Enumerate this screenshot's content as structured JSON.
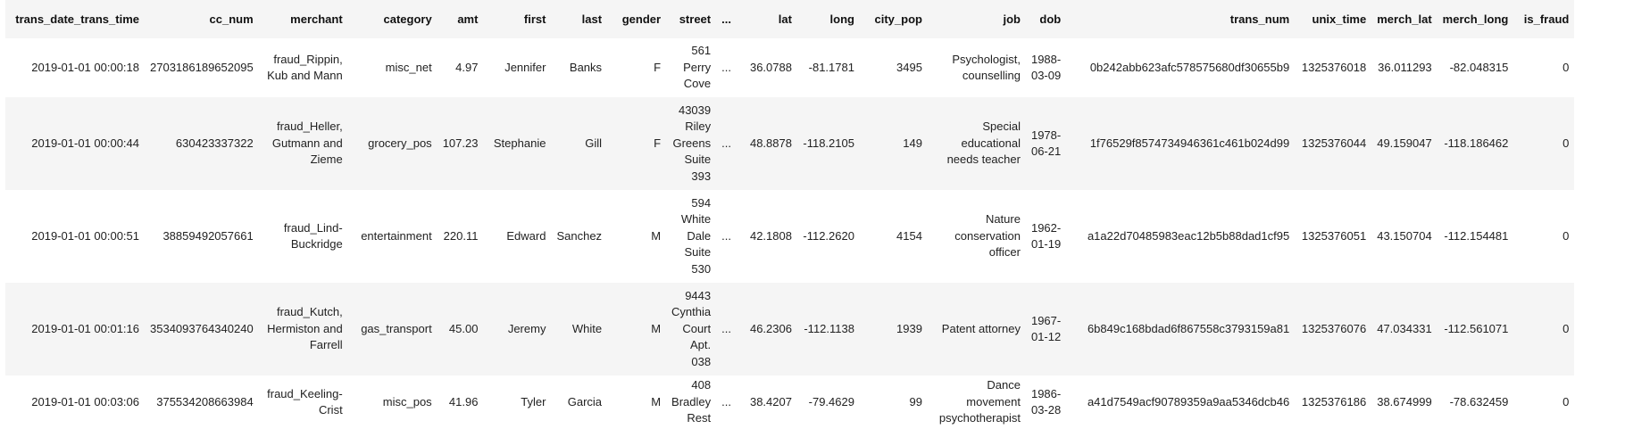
{
  "table": {
    "columns": [
      "trans_date_trans_time",
      "cc_num",
      "merchant",
      "category",
      "amt",
      "first",
      "last",
      "gender",
      "street",
      "...",
      "lat",
      "long",
      "city_pop",
      "job",
      "dob",
      "trans_num",
      "unix_time",
      "merch_lat",
      "merch_long",
      "is_fraud"
    ],
    "rows": [
      [
        "2019-01-01 00:00:18",
        "2703186189652095",
        "fraud_Rippin, Kub and Mann",
        "misc_net",
        "4.97",
        "Jennifer",
        "Banks",
        "F",
        "561 Perry Cove",
        "...",
        "36.0788",
        "-81.1781",
        "3495",
        "Psychologist, counselling",
        "1988-03-09",
        "0b242abb623afc578575680df30655b9",
        "1325376018",
        "36.011293",
        "-82.048315",
        "0"
      ],
      [
        "2019-01-01 00:00:44",
        "630423337322",
        "fraud_Heller, Gutmann and Zieme",
        "grocery_pos",
        "107.23",
        "Stephanie",
        "Gill",
        "F",
        "43039 Riley Greens Suite 393",
        "...",
        "48.8878",
        "-118.2105",
        "149",
        "Special educational needs teacher",
        "1978-06-21",
        "1f76529f8574734946361c461b024d99",
        "1325376044",
        "49.159047",
        "-118.186462",
        "0"
      ],
      [
        "2019-01-01 00:00:51",
        "38859492057661",
        "fraud_Lind-Buckridge",
        "entertainment",
        "220.11",
        "Edward",
        "Sanchez",
        "M",
        "594 White Dale Suite 530",
        "...",
        "42.1808",
        "-112.2620",
        "4154",
        "Nature conservation officer",
        "1962-01-19",
        "a1a22d70485983eac12b5b88dad1cf95",
        "1325376051",
        "43.150704",
        "-112.154481",
        "0"
      ],
      [
        "2019-01-01 00:01:16",
        "3534093764340240",
        "fraud_Kutch, Hermiston and Farrell",
        "gas_transport",
        "45.00",
        "Jeremy",
        "White",
        "M",
        "9443 Cynthia Court Apt. 038",
        "...",
        "46.2306",
        "-112.1138",
        "1939",
        "Patent attorney",
        "1967-01-12",
        "6b849c168bdad6f867558c3793159a81",
        "1325376076",
        "47.034331",
        "-112.561071",
        "0"
      ],
      [
        "2019-01-01 00:03:06",
        "375534208663984",
        "fraud_Keeling-Crist",
        "misc_pos",
        "41.96",
        "Tyler",
        "Garcia",
        "M",
        "408 Bradley Rest",
        "...",
        "38.4207",
        "-79.4629",
        "99",
        "Dance movement psychotherapist",
        "1986-03-28",
        "a41d7549acf90789359a9aa5346dcb46",
        "1325376186",
        "38.674999",
        "-78.632459",
        "0"
      ]
    ]
  }
}
